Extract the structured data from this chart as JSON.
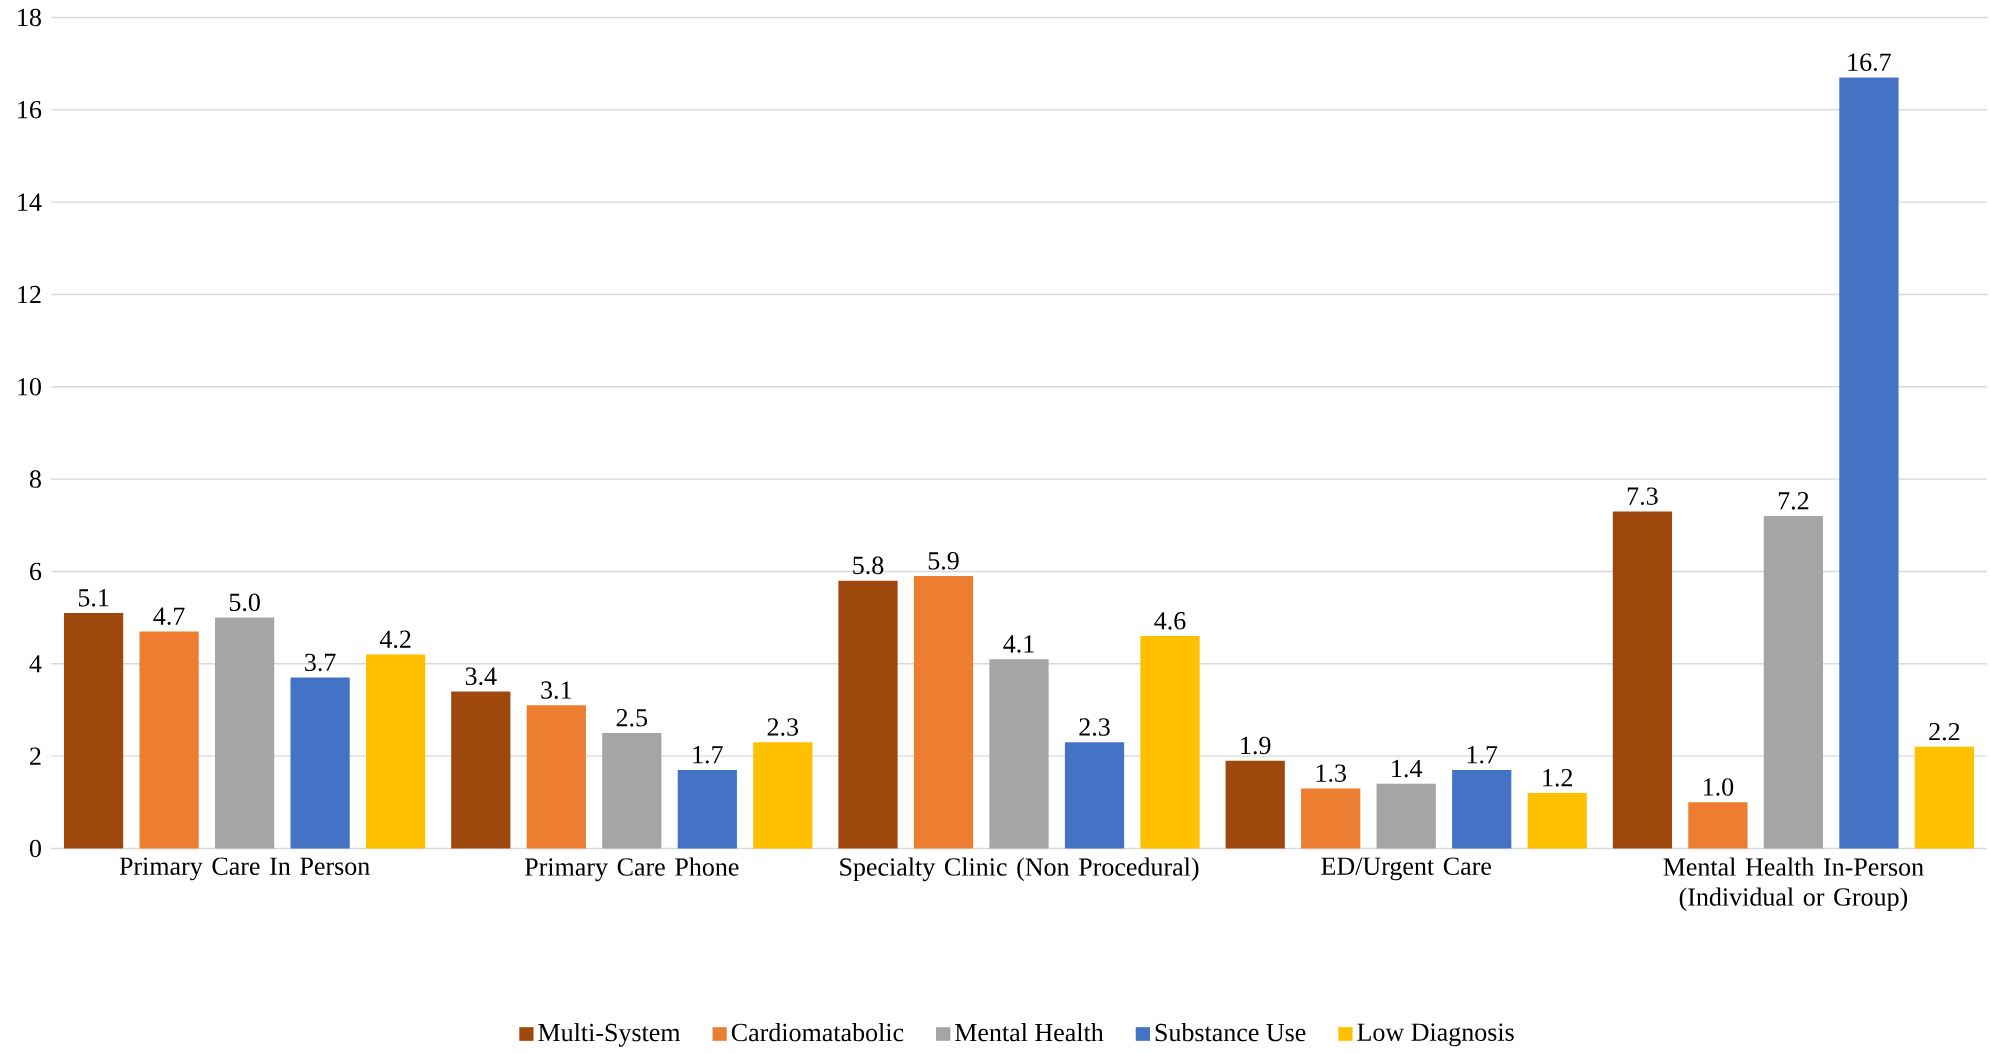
{
  "chart_data": {
    "type": "bar",
    "categories": [
      "Primary Care In Person",
      "Primary Care Phone",
      "Specialty Clinic (Non Procedural)",
      "ED/Urgent Care",
      "Mental Health In-Person (Individual or Group)"
    ],
    "series": [
      {
        "name": "Multi-System",
        "color": "#9e480e",
        "values": [
          5.1,
          3.4,
          5.8,
          1.9,
          7.3
        ],
        "value_labels": [
          "5.1",
          "3.4",
          "5.8",
          "1.9",
          "7.3"
        ]
      },
      {
        "name": "Cardiomatabolic",
        "color": "#ed7d31",
        "values": [
          4.7,
          3.1,
          5.9,
          1.3,
          1.0
        ],
        "value_labels": [
          "4.7",
          "3.1",
          "5.9",
          "1.3",
          "1.0"
        ]
      },
      {
        "name": "Mental Health",
        "color": "#a5a5a5",
        "values": [
          5.0,
          2.5,
          4.1,
          1.4,
          7.2
        ],
        "value_labels": [
          "5.0",
          "2.5",
          "4.1",
          "1.4",
          "7.2"
        ]
      },
      {
        "name": "Substance Use",
        "color": "#4472c4",
        "values": [
          3.7,
          1.7,
          2.3,
          1.7,
          16.7
        ],
        "value_labels": [
          "3.7",
          "1.7",
          "2.3",
          "1.7",
          "16.7"
        ]
      },
      {
        "name": "Low Diagnosis",
        "color": "#ffc000",
        "values": [
          4.2,
          2.3,
          4.6,
          1.2,
          2.2
        ],
        "value_labels": [
          "4.2",
          "2.3",
          "4.6",
          "1.2",
          "2.2"
        ]
      }
    ],
    "ylim": [
      0,
      18
    ],
    "yticks": [
      0,
      2,
      4,
      6,
      8,
      10,
      12,
      14,
      16,
      18
    ],
    "grid": "y",
    "legend": "bottom"
  }
}
